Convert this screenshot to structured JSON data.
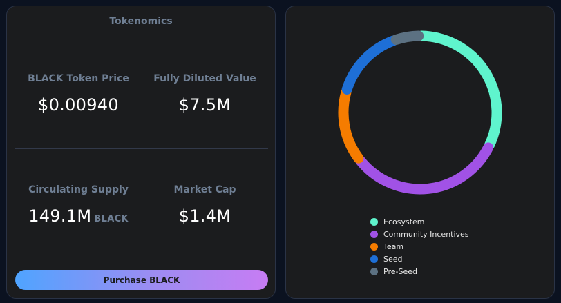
{
  "tokenomics": {
    "title": "Tokenomics",
    "price": {
      "label": "BLACK Token Price",
      "value": "$0.00940"
    },
    "fdv": {
      "label": "Fully Diluted Value",
      "value": "$7.5M"
    },
    "supply": {
      "label": "Circulating Supply",
      "value": "149.1M",
      "unit": "BLACK"
    },
    "mcap": {
      "label": "Market Cap",
      "value": "$1.4M"
    },
    "purchase_label": "Purchase BLACK"
  },
  "chart_data": {
    "type": "pie",
    "style": "donut",
    "legend_position": "bottom",
    "categories": [
      "Ecosystem",
      "Community Incentives",
      "Team",
      "Seed",
      "Pre-Seed"
    ],
    "values": [
      30,
      30,
      14,
      14,
      5
    ],
    "colors": [
      "#5ff4cd",
      "#a152e6",
      "#f57c00",
      "#1e6fd6",
      "#5c7182"
    ]
  }
}
